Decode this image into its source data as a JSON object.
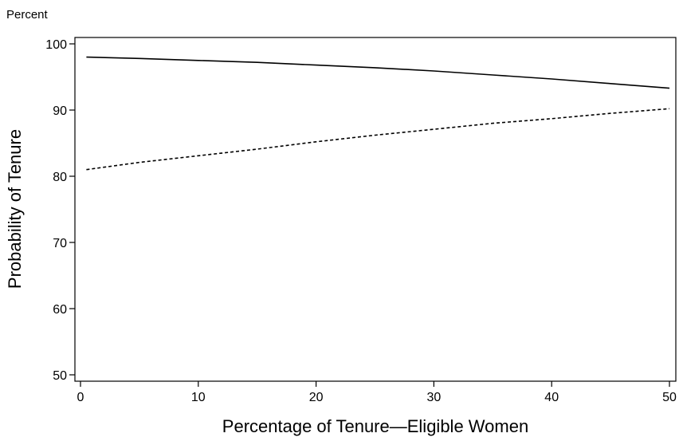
{
  "chart_data": {
    "type": "line",
    "unit_label": "Percent",
    "xlabel": "Percentage of Tenure—Eligible Women",
    "ylabel": "Probability of Tenure",
    "xlim": [
      0,
      50
    ],
    "ylim": [
      50,
      100
    ],
    "xticks": [
      0,
      10,
      20,
      30,
      40,
      50
    ],
    "yticks": [
      50,
      60,
      70,
      80,
      90,
      100
    ],
    "grid": false,
    "legend": "none",
    "series": [
      {
        "style": "solid",
        "color": "#000000",
        "x": [
          0.5,
          5,
          10,
          15,
          20,
          25,
          30,
          35,
          40,
          45,
          50
        ],
        "y": [
          98.0,
          97.8,
          97.5,
          97.2,
          96.8,
          96.4,
          95.9,
          95.3,
          94.7,
          94.0,
          93.3
        ]
      },
      {
        "style": "dashed",
        "color": "#000000",
        "x": [
          0.5,
          5,
          10,
          15,
          20,
          25,
          30,
          35,
          40,
          45,
          50
        ],
        "y": [
          81.0,
          82.1,
          83.1,
          84.1,
          85.2,
          86.2,
          87.1,
          88.0,
          88.7,
          89.5,
          90.2
        ]
      }
    ]
  }
}
